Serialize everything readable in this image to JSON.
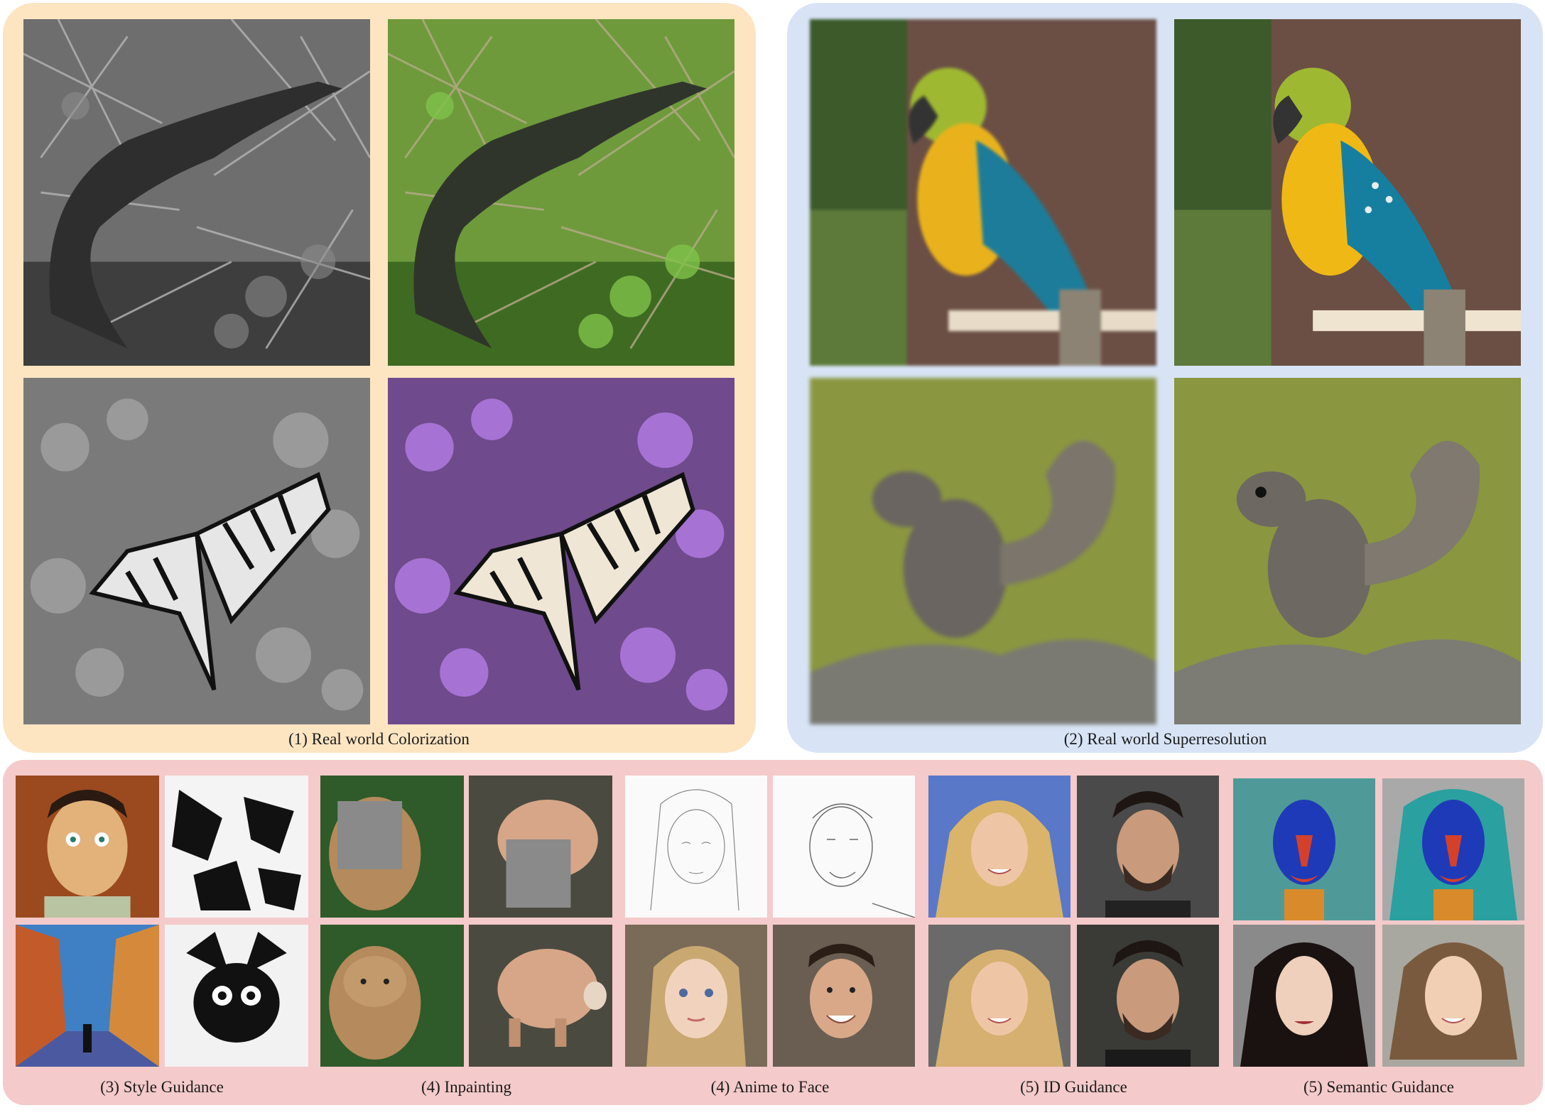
{
  "figure": {
    "captions": {
      "colorization": "(1) Real world Colorization",
      "superresolution": "(2) Real world Superresolution",
      "style": "(3) Style Guidance",
      "inpainting": "(4) Inpainting",
      "anime": "(4) Anime to Face",
      "id": "(5) ID Guidance",
      "semantic": "(5) Semantic Guidance"
    },
    "colors": {
      "colorization_panel": "#fde5c2",
      "superresolution_panel": "#d8e4f6",
      "guidance_panel": "#f4caca"
    }
  }
}
